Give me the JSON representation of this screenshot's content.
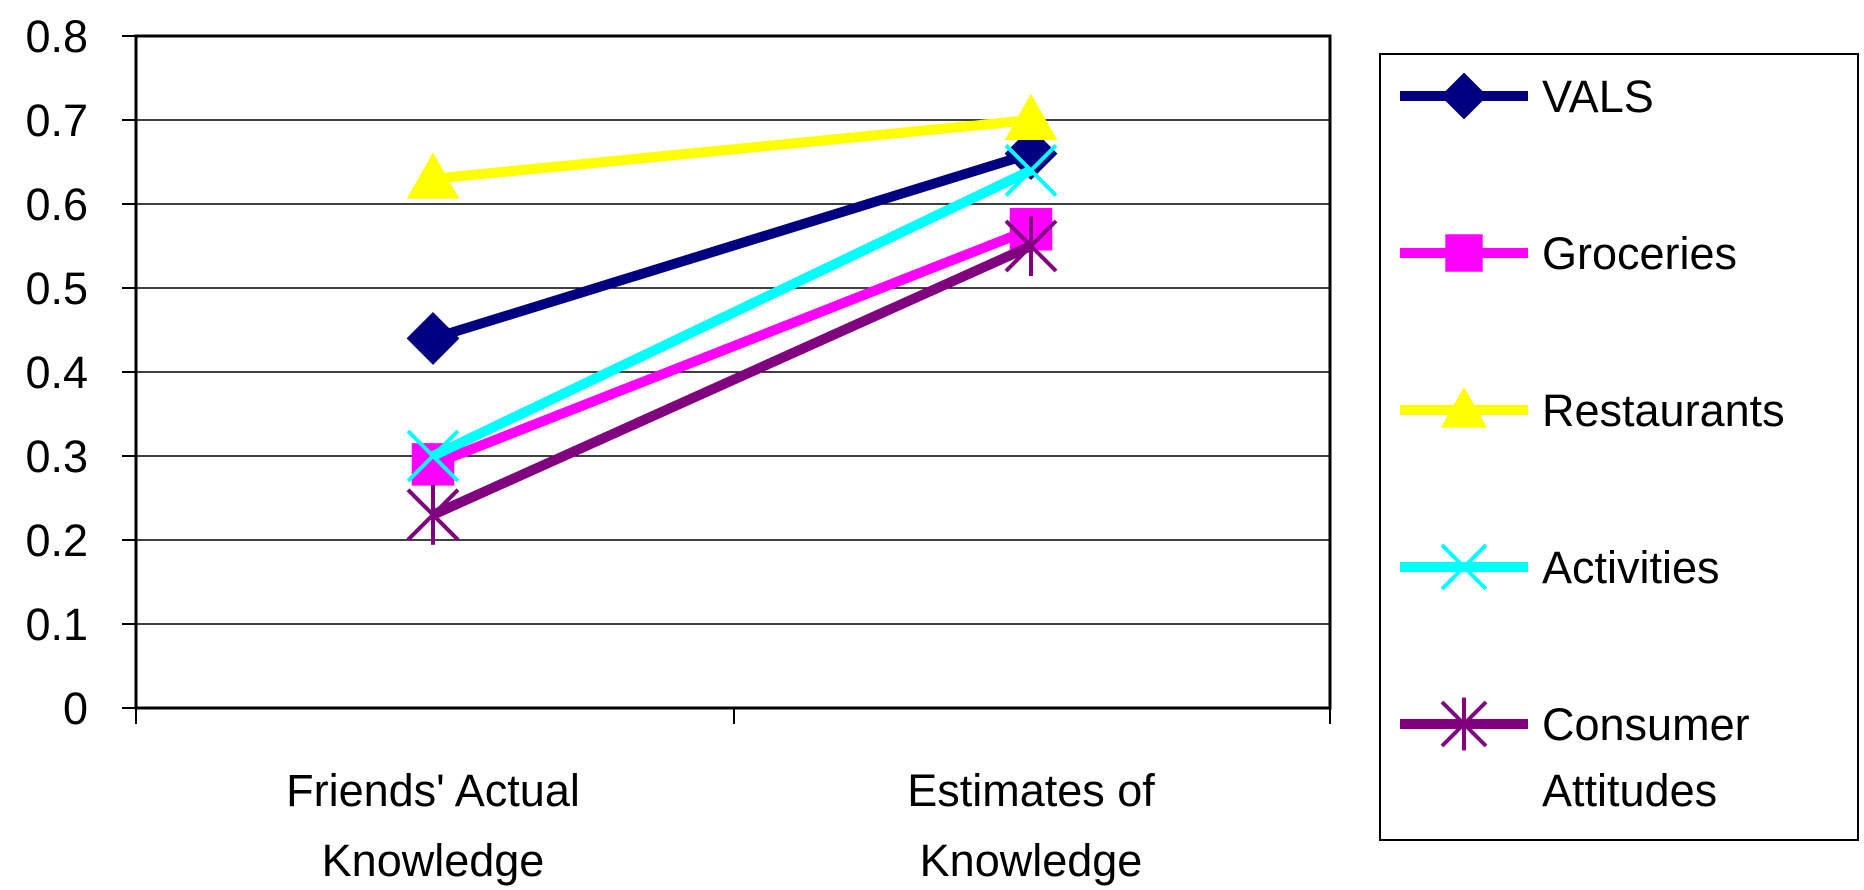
{
  "chart_data": {
    "type": "line",
    "title": "",
    "xlabel": "",
    "ylabel": "",
    "categories": [
      "Friends' Actual Knowledge",
      "Estimates of Knowledge"
    ],
    "category_lines": [
      [
        "Friends' Actual",
        "Knowledge"
      ],
      [
        "Estimates of",
        "Knowledge"
      ]
    ],
    "ylim": [
      0,
      0.8
    ],
    "yticks": [
      "0",
      "0.1",
      "0.2",
      "0.3",
      "0.4",
      "0.5",
      "0.6",
      "0.7",
      "0.8"
    ],
    "grid": true,
    "legend_position": "right",
    "series": [
      {
        "name": "VALS",
        "name_lines": [
          "VALS"
        ],
        "values": [
          0.44,
          0.66
        ],
        "color": "#000080",
        "marker": "diamond"
      },
      {
        "name": "Groceries",
        "name_lines": [
          "Groceries"
        ],
        "values": [
          0.29,
          0.57
        ],
        "color": "#FF00FF",
        "marker": "square"
      },
      {
        "name": "Restaurants",
        "name_lines": [
          "Restaurants"
        ],
        "values": [
          0.63,
          0.7
        ],
        "color": "#FFFF00",
        "marker": "triangle"
      },
      {
        "name": "Activities",
        "name_lines": [
          "Activities"
        ],
        "values": [
          0.3,
          0.64
        ],
        "color": "#00FFFF",
        "marker": "x"
      },
      {
        "name": "Consumer Attitudes",
        "name_lines": [
          "Consumer",
          "Attitudes"
        ],
        "values": [
          0.23,
          0.55
        ],
        "color": "#800080",
        "marker": "asterisk"
      }
    ]
  }
}
